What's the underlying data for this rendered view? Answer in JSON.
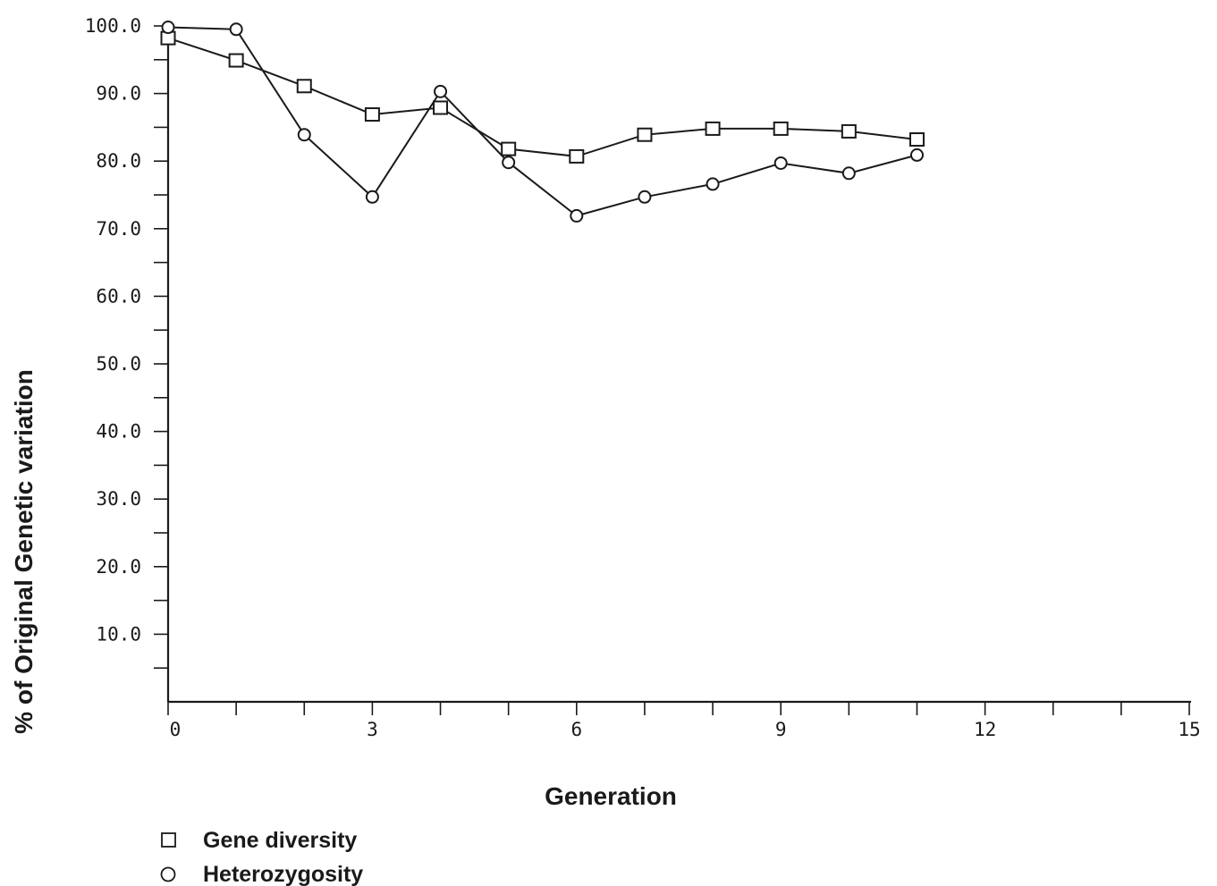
{
  "chart_data": {
    "type": "line",
    "title": "",
    "xlabel": "Generation",
    "ylabel": "% of Original Genetic variation",
    "xlim": [
      0,
      15
    ],
    "ylim": [
      0,
      100
    ],
    "x_ticks": [
      0,
      3,
      6,
      9,
      12,
      15
    ],
    "x_tick_labels": [
      "0",
      "3",
      "6",
      "9",
      "12",
      "15"
    ],
    "y_ticks": [
      10,
      20,
      30,
      40,
      50,
      60,
      70,
      80,
      90,
      100
    ],
    "y_tick_labels": [
      "10.0",
      "20.0",
      "30.0",
      "40.0",
      "50.0",
      "60.0",
      "70.0",
      "80.0",
      "90.0",
      "100.0"
    ],
    "grid": false,
    "legend_position": "bottom-left",
    "series": [
      {
        "name": "Gene diversity",
        "marker": "square",
        "color": "#1a1a1a",
        "x": [
          0,
          1,
          2,
          3,
          4,
          5,
          6,
          7,
          8,
          9,
          10,
          11
        ],
        "y": [
          98.2,
          94.9,
          91.1,
          86.9,
          87.9,
          81.8,
          80.7,
          83.9,
          84.8,
          84.8,
          84.4,
          83.2
        ]
      },
      {
        "name": "Heterozygosity",
        "marker": "circle",
        "color": "#1a1a1a",
        "x": [
          0,
          1,
          2,
          3,
          4,
          5,
          6,
          7,
          8,
          9,
          10,
          11
        ],
        "y": [
          99.8,
          99.5,
          83.9,
          74.7,
          90.3,
          79.8,
          71.9,
          74.7,
          76.6,
          79.7,
          78.2,
          80.9
        ]
      }
    ]
  }
}
